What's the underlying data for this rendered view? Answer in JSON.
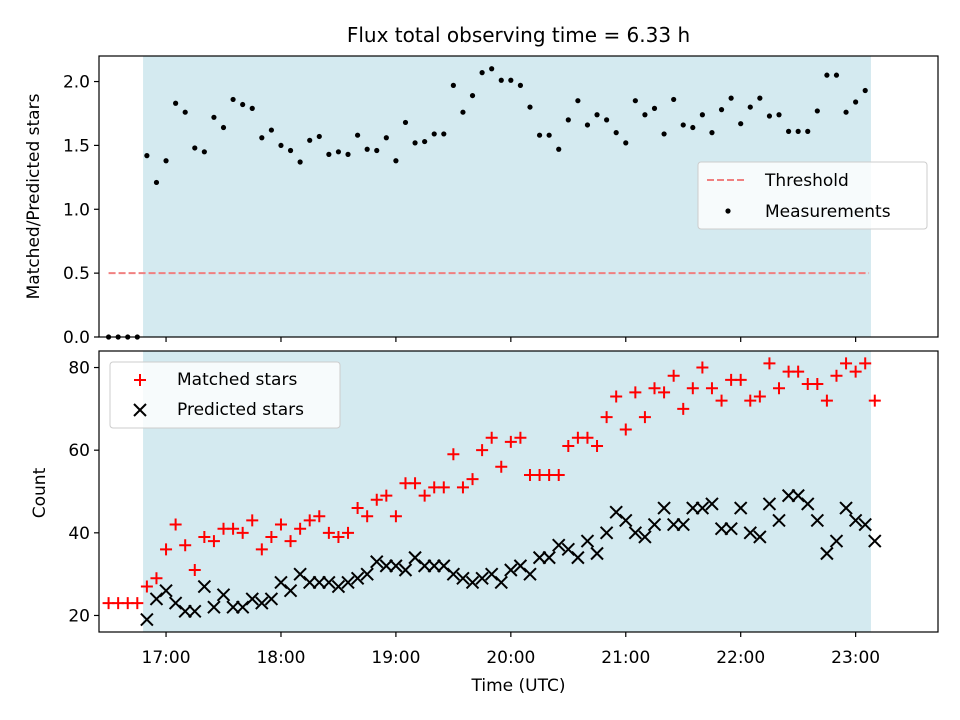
{
  "chart_data": [
    {
      "type": "scatter",
      "title": "Flux total observing time = 6.33 h",
      "ylabel": "Matched/Predicted stars",
      "xlabel": "",
      "xlim": [
        "16:25",
        "23:43"
      ],
      "ylim": [
        0,
        2.2
      ],
      "yticks": [
        0.0,
        0.5,
        1.0,
        1.5,
        2.0
      ],
      "yticklabels": [
        "0.0",
        "0.5",
        "1.0",
        "1.5",
        "2.0"
      ],
      "shaded_span": [
        "16:48",
        "23:08"
      ],
      "legend_position": "center-right",
      "series": [
        {
          "name": "Threshold",
          "style": "dashed",
          "color": "#f08080",
          "x": [
            "16:30",
            "23:07"
          ],
          "y": [
            0.5,
            0.5
          ]
        },
        {
          "name": "Measurements",
          "style": "dot",
          "color": "#000000",
          "x": [
            "16:30",
            "16:35",
            "16:40",
            "16:45",
            "16:50",
            "16:55",
            "17:00",
            "17:05",
            "17:10",
            "17:15",
            "17:20",
            "17:25",
            "17:30",
            "17:35",
            "17:40",
            "17:45",
            "17:50",
            "17:55",
            "18:00",
            "18:05",
            "18:10",
            "18:15",
            "18:20",
            "18:25",
            "18:30",
            "18:35",
            "18:40",
            "18:45",
            "18:50",
            "18:55",
            "19:00",
            "19:05",
            "19:10",
            "19:15",
            "19:20",
            "19:25",
            "19:30",
            "19:35",
            "19:40",
            "19:45",
            "19:50",
            "19:55",
            "20:00",
            "20:05",
            "20:10",
            "20:15",
            "20:20",
            "20:25",
            "20:30",
            "20:35",
            "20:40",
            "20:45",
            "20:50",
            "20:55",
            "21:00",
            "21:05",
            "21:10",
            "21:15",
            "21:20",
            "21:25",
            "21:30",
            "21:35",
            "21:40",
            "21:45",
            "21:50",
            "21:55",
            "22:00",
            "22:05",
            "22:10",
            "22:15",
            "22:20",
            "22:25",
            "22:30",
            "22:35",
            "22:40",
            "22:45",
            "22:50",
            "22:55",
            "23:00",
            "23:05"
          ],
          "y": [
            0.0,
            0.0,
            0.0,
            0.0,
            1.42,
            1.21,
            1.38,
            1.83,
            1.76,
            1.48,
            1.45,
            1.72,
            1.64,
            1.86,
            1.82,
            1.79,
            1.56,
            1.62,
            1.5,
            1.46,
            1.37,
            1.54,
            1.57,
            1.43,
            1.45,
            1.43,
            1.58,
            1.47,
            1.46,
            1.56,
            1.38,
            1.68,
            1.52,
            1.53,
            1.59,
            1.59,
            1.97,
            1.76,
            1.89,
            2.07,
            2.1,
            2.01,
            2.01,
            1.97,
            1.8,
            1.58,
            1.58,
            1.47,
            1.7,
            1.85,
            1.66,
            1.74,
            1.7,
            1.6,
            1.52,
            1.85,
            1.74,
            1.79,
            1.59,
            1.86,
            1.66,
            1.64,
            1.74,
            1.6,
            1.78,
            1.87,
            1.67,
            1.8,
            1.87,
            1.73,
            1.74,
            1.61,
            1.61,
            1.61,
            1.77,
            2.05,
            2.05,
            1.76,
            1.84,
            1.93
          ]
        }
      ]
    },
    {
      "type": "scatter",
      "title": "",
      "ylabel": "Count",
      "xlabel": "Time (UTC)",
      "xlim": [
        "16:25",
        "23:43"
      ],
      "ylim": [
        16,
        84
      ],
      "yticks": [
        20,
        40,
        60,
        80
      ],
      "yticklabels": [
        "20",
        "40",
        "60",
        "80"
      ],
      "xticks": [
        "17:00",
        "18:00",
        "19:00",
        "20:00",
        "21:00",
        "22:00",
        "23:00"
      ],
      "xticklabels": [
        "17:00",
        "18:00",
        "19:00",
        "20:00",
        "21:00",
        "22:00",
        "23:00"
      ],
      "shaded_span": [
        "16:48",
        "23:08"
      ],
      "legend_position": "top-left",
      "series": [
        {
          "name": "Matched stars",
          "marker": "plus",
          "color": "#ff0000",
          "x": [
            "16:30",
            "16:35",
            "16:40",
            "16:45",
            "16:50",
            "16:55",
            "17:00",
            "17:05",
            "17:10",
            "17:15",
            "17:20",
            "17:25",
            "17:30",
            "17:35",
            "17:40",
            "17:45",
            "17:50",
            "17:55",
            "18:00",
            "18:05",
            "18:10",
            "18:15",
            "18:20",
            "18:25",
            "18:30",
            "18:35",
            "18:40",
            "18:45",
            "18:50",
            "18:55",
            "19:00",
            "19:05",
            "19:10",
            "19:15",
            "19:20",
            "19:25",
            "19:30",
            "19:35",
            "19:40",
            "19:45",
            "19:50",
            "19:55",
            "20:00",
            "20:05",
            "20:10",
            "20:15",
            "20:20",
            "20:25",
            "20:30",
            "20:35",
            "20:40",
            "20:45",
            "20:50",
            "20:55",
            "21:00",
            "21:05",
            "21:10",
            "21:15",
            "21:20",
            "21:25",
            "21:30",
            "21:35",
            "21:40",
            "21:45",
            "21:50",
            "21:55",
            "22:00",
            "22:05",
            "22:10",
            "22:15",
            "22:20",
            "22:25",
            "22:30",
            "22:35",
            "22:40",
            "22:45",
            "22:50",
            "22:55",
            "23:00",
            "23:05",
            "23:10"
          ],
          "y": [
            23,
            23,
            23,
            23,
            27,
            29,
            36,
            42,
            37,
            31,
            39,
            38,
            41,
            41,
            40,
            43,
            36,
            39,
            42,
            38,
            41,
            43,
            44,
            40,
            39,
            40,
            46,
            44,
            48,
            49,
            44,
            52,
            52,
            49,
            51,
            51,
            59,
            51,
            53,
            60,
            63,
            56,
            62,
            63,
            54,
            54,
            54,
            54,
            61,
            63,
            63,
            61,
            68,
            73,
            65,
            74,
            68,
            75,
            74,
            78,
            70,
            75,
            80,
            75,
            72,
            77,
            77,
            72,
            73,
            81,
            75,
            79,
            79,
            76,
            76,
            72,
            78,
            81,
            79,
            81,
            72
          ]
        },
        {
          "name": "Predicted stars",
          "marker": "x",
          "color": "#000000",
          "x": [
            "16:50",
            "16:55",
            "17:00",
            "17:05",
            "17:10",
            "17:15",
            "17:20",
            "17:25",
            "17:30",
            "17:35",
            "17:40",
            "17:45",
            "17:50",
            "17:55",
            "18:00",
            "18:05",
            "18:10",
            "18:15",
            "18:20",
            "18:25",
            "18:30",
            "18:35",
            "18:40",
            "18:45",
            "18:50",
            "18:55",
            "19:00",
            "19:05",
            "19:10",
            "19:15",
            "19:20",
            "19:25",
            "19:30",
            "19:35",
            "19:40",
            "19:45",
            "19:50",
            "19:55",
            "20:00",
            "20:05",
            "20:10",
            "20:15",
            "20:20",
            "20:25",
            "20:30",
            "20:35",
            "20:40",
            "20:45",
            "20:50",
            "20:55",
            "21:00",
            "21:05",
            "21:10",
            "21:15",
            "21:20",
            "21:25",
            "21:30",
            "21:35",
            "21:40",
            "21:45",
            "21:50",
            "21:55",
            "22:00",
            "22:05",
            "22:10",
            "22:15",
            "22:20",
            "22:25",
            "22:30",
            "22:35",
            "22:40",
            "22:45",
            "22:50",
            "22:55",
            "23:00",
            "23:05",
            "23:10"
          ],
          "y": [
            19,
            24,
            26,
            23,
            21,
            21,
            27,
            22,
            25,
            22,
            22,
            24,
            23,
            24,
            28,
            26,
            30,
            28,
            28,
            28,
            27,
            28,
            29,
            30,
            33,
            32,
            32,
            31,
            34,
            32,
            32,
            32,
            30,
            29,
            28,
            29,
            30,
            28,
            31,
            32,
            30,
            34,
            34,
            37,
            36,
            34,
            38,
            35,
            40,
            45,
            43,
            40,
            39,
            42,
            46,
            42,
            42,
            46,
            46,
            47,
            41,
            41,
            46,
            40,
            39,
            47,
            43,
            49,
            49,
            47,
            43,
            35,
            38,
            46,
            43,
            42,
            38
          ]
        }
      ]
    }
  ],
  "colors": {
    "shade": "#d4eaf0",
    "threshold": "#f08080",
    "matched": "#ff0000",
    "predicted": "#000000"
  }
}
